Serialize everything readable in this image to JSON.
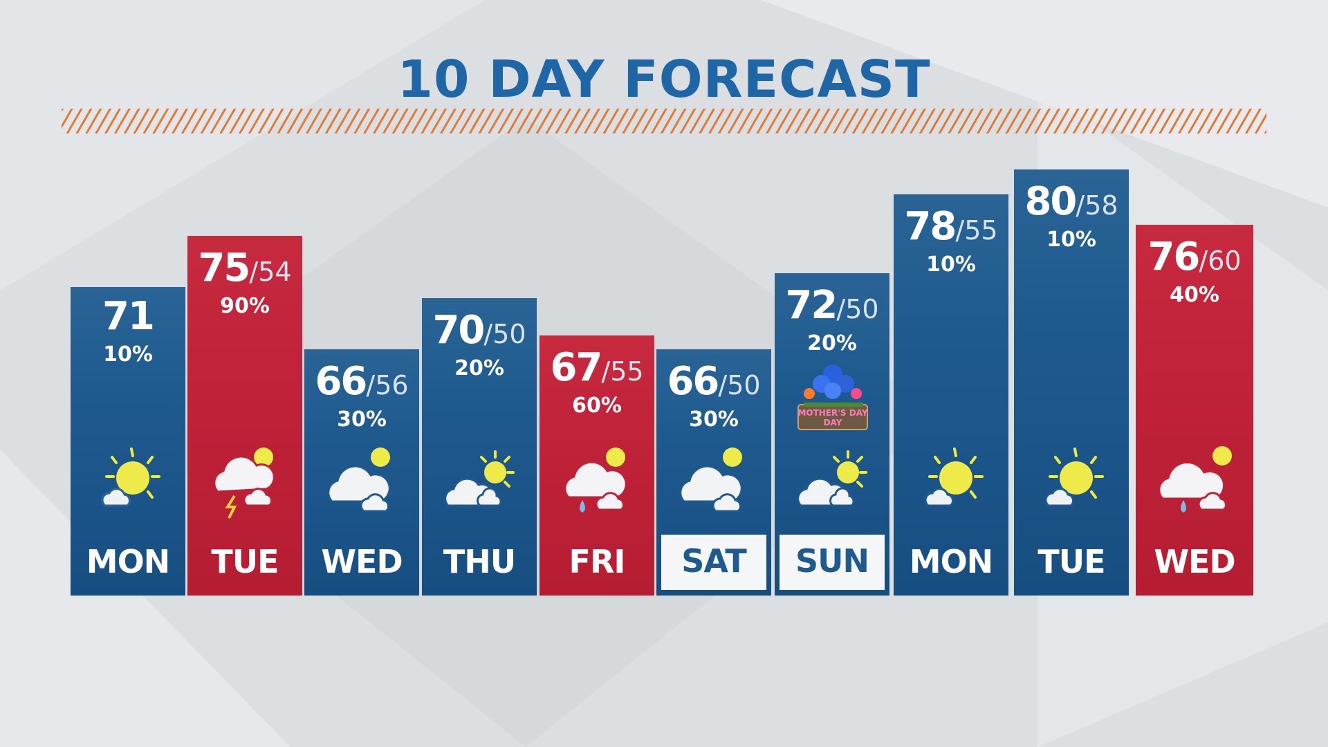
{
  "title": "10 DAY FORECAST",
  "colors": {
    "title": "#1e66a5",
    "cool_column": "#1f5a8f",
    "warm_column": "#be2138",
    "hatch": "#e07a35",
    "weekend_label_bg": "#f4f6f8"
  },
  "days": [
    {
      "day": "MON",
      "high": "71",
      "low": "",
      "precip": "10%",
      "icon": "partly-sunny-icon",
      "color": "blue"
    },
    {
      "day": "TUE",
      "high": "75",
      "low": "/54",
      "precip": "90%",
      "icon": "thunderstorm-icon",
      "color": "red"
    },
    {
      "day": "WED",
      "high": "66",
      "low": "/56",
      "precip": "30%",
      "icon": "mostly-cloudy-icon",
      "color": "blue"
    },
    {
      "day": "THU",
      "high": "70",
      "low": "/50",
      "precip": "20%",
      "icon": "partly-cloudy-icon",
      "color": "blue"
    },
    {
      "day": "FRI",
      "high": "67",
      "low": "/55",
      "precip": "60%",
      "icon": "showers-icon",
      "color": "red"
    },
    {
      "day": "SAT",
      "high": "66",
      "low": "/50",
      "precip": "30%",
      "icon": "mostly-cloudy-icon",
      "color": "blue",
      "weekend": true
    },
    {
      "day": "SUN",
      "high": "72",
      "low": "/50",
      "precip": "20%",
      "icon": "partly-cloudy-icon",
      "color": "blue",
      "weekend": true,
      "special": "MOTHER'S DAY"
    },
    {
      "day": "MON",
      "high": "78",
      "low": "/55",
      "precip": "10%",
      "icon": "partly-sunny-icon",
      "color": "blue"
    },
    {
      "day": "TUE",
      "high": "80",
      "low": "/58",
      "precip": "10%",
      "icon": "partly-sunny-icon",
      "color": "blue"
    },
    {
      "day": "WED",
      "high": "76",
      "low": "/60",
      "precip": "40%",
      "icon": "rain-cloudy-icon",
      "color": "red"
    }
  ]
}
